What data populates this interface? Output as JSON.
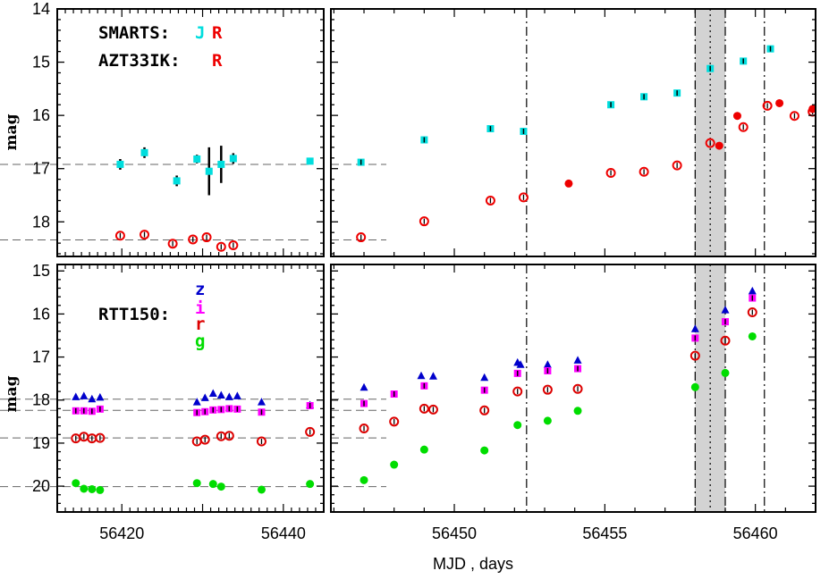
{
  "figure": {
    "xlabel": "MJD , days",
    "ylabel_top": "mag",
    "ylabel_bottom": "mag",
    "colors": {
      "J": "#00dddd",
      "R": "#ee0000",
      "z": "#0000cc",
      "i": "#ff00ff",
      "r": "#dd0000",
      "g": "#00dd00",
      "band": "#d3d3d3"
    }
  },
  "legend_top": {
    "smarts_label": "SMARTS:",
    "smarts_J": "J",
    "smarts_R": "R",
    "azt_label": "AZT33IK:",
    "azt_R": "R"
  },
  "legend_bottom": {
    "rtt_label": "RTT150:",
    "z": "z",
    "i": "i",
    "r": "r",
    "g": "g"
  },
  "chart_data": [
    {
      "type": "scatter",
      "name": "top-left",
      "title": "",
      "xlim": [
        56412,
        56445
      ],
      "ylim": [
        18.65,
        14.0
      ],
      "xticks": [
        56420,
        56440
      ],
      "yticks": [
        14,
        15,
        16,
        17,
        18
      ],
      "ylabel": "mag",
      "hlines": [
        16.92,
        18.34
      ],
      "series": [
        {
          "name": "SMARTS J",
          "color": "#00dddd",
          "marker": "square",
          "x": [
            56419.8,
            56422.8,
            56426.8,
            56429.3,
            56430.8,
            56432.3,
            56433.8,
            56443.3
          ],
          "y": [
            16.92,
            16.7,
            17.23,
            16.82,
            17.05,
            16.92,
            16.81,
            16.86
          ],
          "err": [
            0.1,
            0.1,
            0.1,
            0.08,
            0.45,
            0.35,
            0.1,
            0.06
          ]
        },
        {
          "name": "R",
          "color": "#ee0000",
          "marker": "open-circle",
          "x": [
            56419.8,
            56422.8,
            56426.3,
            56428.8,
            56430.5,
            56432.3,
            56433.8
          ],
          "y": [
            18.26,
            18.24,
            18.41,
            18.33,
            18.29,
            18.47,
            18.44
          ]
        }
      ]
    },
    {
      "type": "scatter",
      "name": "top-right",
      "title": "",
      "xlim": [
        56445.9,
        56462
      ],
      "ylim": [
        18.65,
        14.0
      ],
      "xticks": [
        56450,
        56455,
        56460
      ],
      "yticks": [
        14,
        15,
        16,
        17,
        18
      ],
      "vlines": [
        56452.4,
        56458.0,
        56458.5,
        56459.0,
        56460.3
      ],
      "band": [
        56458.0,
        56459.0
      ],
      "series": [
        {
          "name": "SMARTS J",
          "color": "#00dddd",
          "marker": "square",
          "x": [
            56446.9,
            56449.0,
            56451.2,
            56452.3,
            56455.2,
            56456.3,
            56457.4,
            56458.5,
            56459.6,
            56460.5
          ],
          "y": [
            16.88,
            16.46,
            16.25,
            16.3,
            15.8,
            15.65,
            15.58,
            15.12,
            14.98,
            14.75
          ]
        },
        {
          "name": "AZT33IK R",
          "color": "#ee0000",
          "marker": "open-circle",
          "x": [
            56446.9,
            56449.0,
            56451.2,
            56452.3,
            56455.2,
            56456.3,
            56457.4,
            56458.5,
            56459.6,
            56460.4,
            56461.3,
            56461.9
          ],
          "y": [
            18.29,
            17.99,
            17.6,
            17.54,
            17.08,
            17.06,
            16.94,
            16.52,
            16.22,
            15.82,
            16.01,
            15.93
          ]
        },
        {
          "name": "SMARTS R",
          "color": "#ee0000",
          "marker": "filled-circle",
          "x": [
            56453.8,
            56458.8,
            56459.4,
            56460.8,
            56461.9
          ],
          "y": [
            17.28,
            16.57,
            16.01,
            15.77,
            15.88
          ]
        }
      ]
    },
    {
      "type": "scatter",
      "name": "bottom-left",
      "title": "",
      "xlim": [
        56412,
        56445
      ],
      "ylim": [
        20.6,
        14.85
      ],
      "xticks": [
        56420,
        56440
      ],
      "yticks": [
        15,
        16,
        17,
        18,
        19,
        20
      ],
      "ylabel": "mag",
      "hlines": [
        17.98,
        18.24,
        18.88,
        20.01
      ],
      "series": [
        {
          "name": "z",
          "color": "#0000cc",
          "marker": "triangle",
          "x": [
            56414.3,
            56415.3,
            56416.3,
            56417.3,
            56429.3,
            56430.3,
            56431.3,
            56432.3,
            56433.3,
            56434.3,
            56437.3,
            56443.3
          ],
          "y": [
            17.93,
            17.91,
            17.98,
            17.94,
            18.05,
            17.95,
            17.85,
            17.89,
            17.93,
            17.91,
            18.05,
            18.12
          ]
        },
        {
          "name": "i",
          "color": "#ff00ff",
          "marker": "square",
          "x": [
            56414.3,
            56415.3,
            56416.3,
            56417.3,
            56429.3,
            56430.3,
            56431.3,
            56432.3,
            56433.3,
            56434.3,
            56437.3,
            56443.3
          ],
          "y": [
            18.25,
            18.25,
            18.26,
            18.21,
            18.29,
            18.27,
            18.23,
            18.22,
            18.2,
            18.21,
            18.28,
            18.13
          ]
        },
        {
          "name": "r",
          "color": "#dd0000",
          "marker": "open-circle",
          "x": [
            56414.3,
            56415.3,
            56416.3,
            56417.3,
            56429.3,
            56430.3,
            56432.3,
            56433.3,
            56437.3,
            56443.3
          ],
          "y": [
            18.89,
            18.85,
            18.89,
            18.88,
            18.96,
            18.92,
            18.84,
            18.83,
            18.96,
            18.74
          ]
        },
        {
          "name": "g",
          "color": "#00dd00",
          "marker": "filled-circle",
          "x": [
            56414.3,
            56415.3,
            56416.3,
            56417.3,
            56429.3,
            56431.3,
            56432.3,
            56437.3,
            56443.3
          ],
          "y": [
            19.93,
            20.06,
            20.07,
            20.09,
            19.93,
            19.95,
            20.01,
            20.08,
            19.95
          ]
        }
      ]
    },
    {
      "type": "scatter",
      "name": "bottom-right",
      "title": "",
      "xlim": [
        56445.9,
        56462
      ],
      "ylim": [
        20.6,
        14.85
      ],
      "xticks": [
        56450,
        56455,
        56460
      ],
      "yticks": [
        15,
        16,
        17,
        18,
        19,
        20
      ],
      "xlabel": "MJD , days",
      "vlines": [
        56452.4,
        56458.0,
        56458.5,
        56459.0,
        56460.3
      ],
      "band": [
        56458.0,
        56459.0
      ],
      "series": [
        {
          "name": "z",
          "color": "#0000cc",
          "marker": "triangle",
          "x": [
            56447.0,
            56448.9,
            56449.3,
            56451.0,
            56452.1,
            56452.2,
            56453.1,
            56454.1,
            56458.0,
            56459.0,
            56459.9
          ],
          "y": [
            17.71,
            17.44,
            17.45,
            17.48,
            17.13,
            17.18,
            17.18,
            17.08,
            16.35,
            15.91,
            15.47
          ]
        },
        {
          "name": "i",
          "color": "#ff00ff",
          "marker": "square",
          "x": [
            56447.0,
            56448.0,
            56449.0,
            56451.0,
            56452.1,
            56453.1,
            56454.1,
            56458.0,
            56459.0,
            56459.9
          ],
          "y": [
            18.08,
            17.86,
            17.67,
            17.77,
            17.38,
            17.32,
            17.27,
            16.56,
            16.18,
            15.63
          ]
        },
        {
          "name": "r",
          "color": "#dd0000",
          "marker": "open-circle",
          "x": [
            56447.0,
            56448.0,
            56449.0,
            56449.3,
            56451.0,
            56452.1,
            56453.1,
            56454.1,
            56458.0,
            56459.0,
            56459.9
          ],
          "y": [
            18.66,
            18.5,
            18.2,
            18.22,
            18.24,
            17.8,
            17.76,
            17.74,
            16.97,
            16.62,
            15.96
          ]
        },
        {
          "name": "g",
          "color": "#00dd00",
          "marker": "filled-circle",
          "x": [
            56447.0,
            56448.0,
            56449.0,
            56451.0,
            56452.1,
            56453.1,
            56454.1,
            56458.0,
            56459.0,
            56459.9
          ],
          "y": [
            19.86,
            19.5,
            19.15,
            19.17,
            18.58,
            18.48,
            18.25,
            17.7,
            17.37,
            16.52
          ]
        }
      ]
    }
  ]
}
